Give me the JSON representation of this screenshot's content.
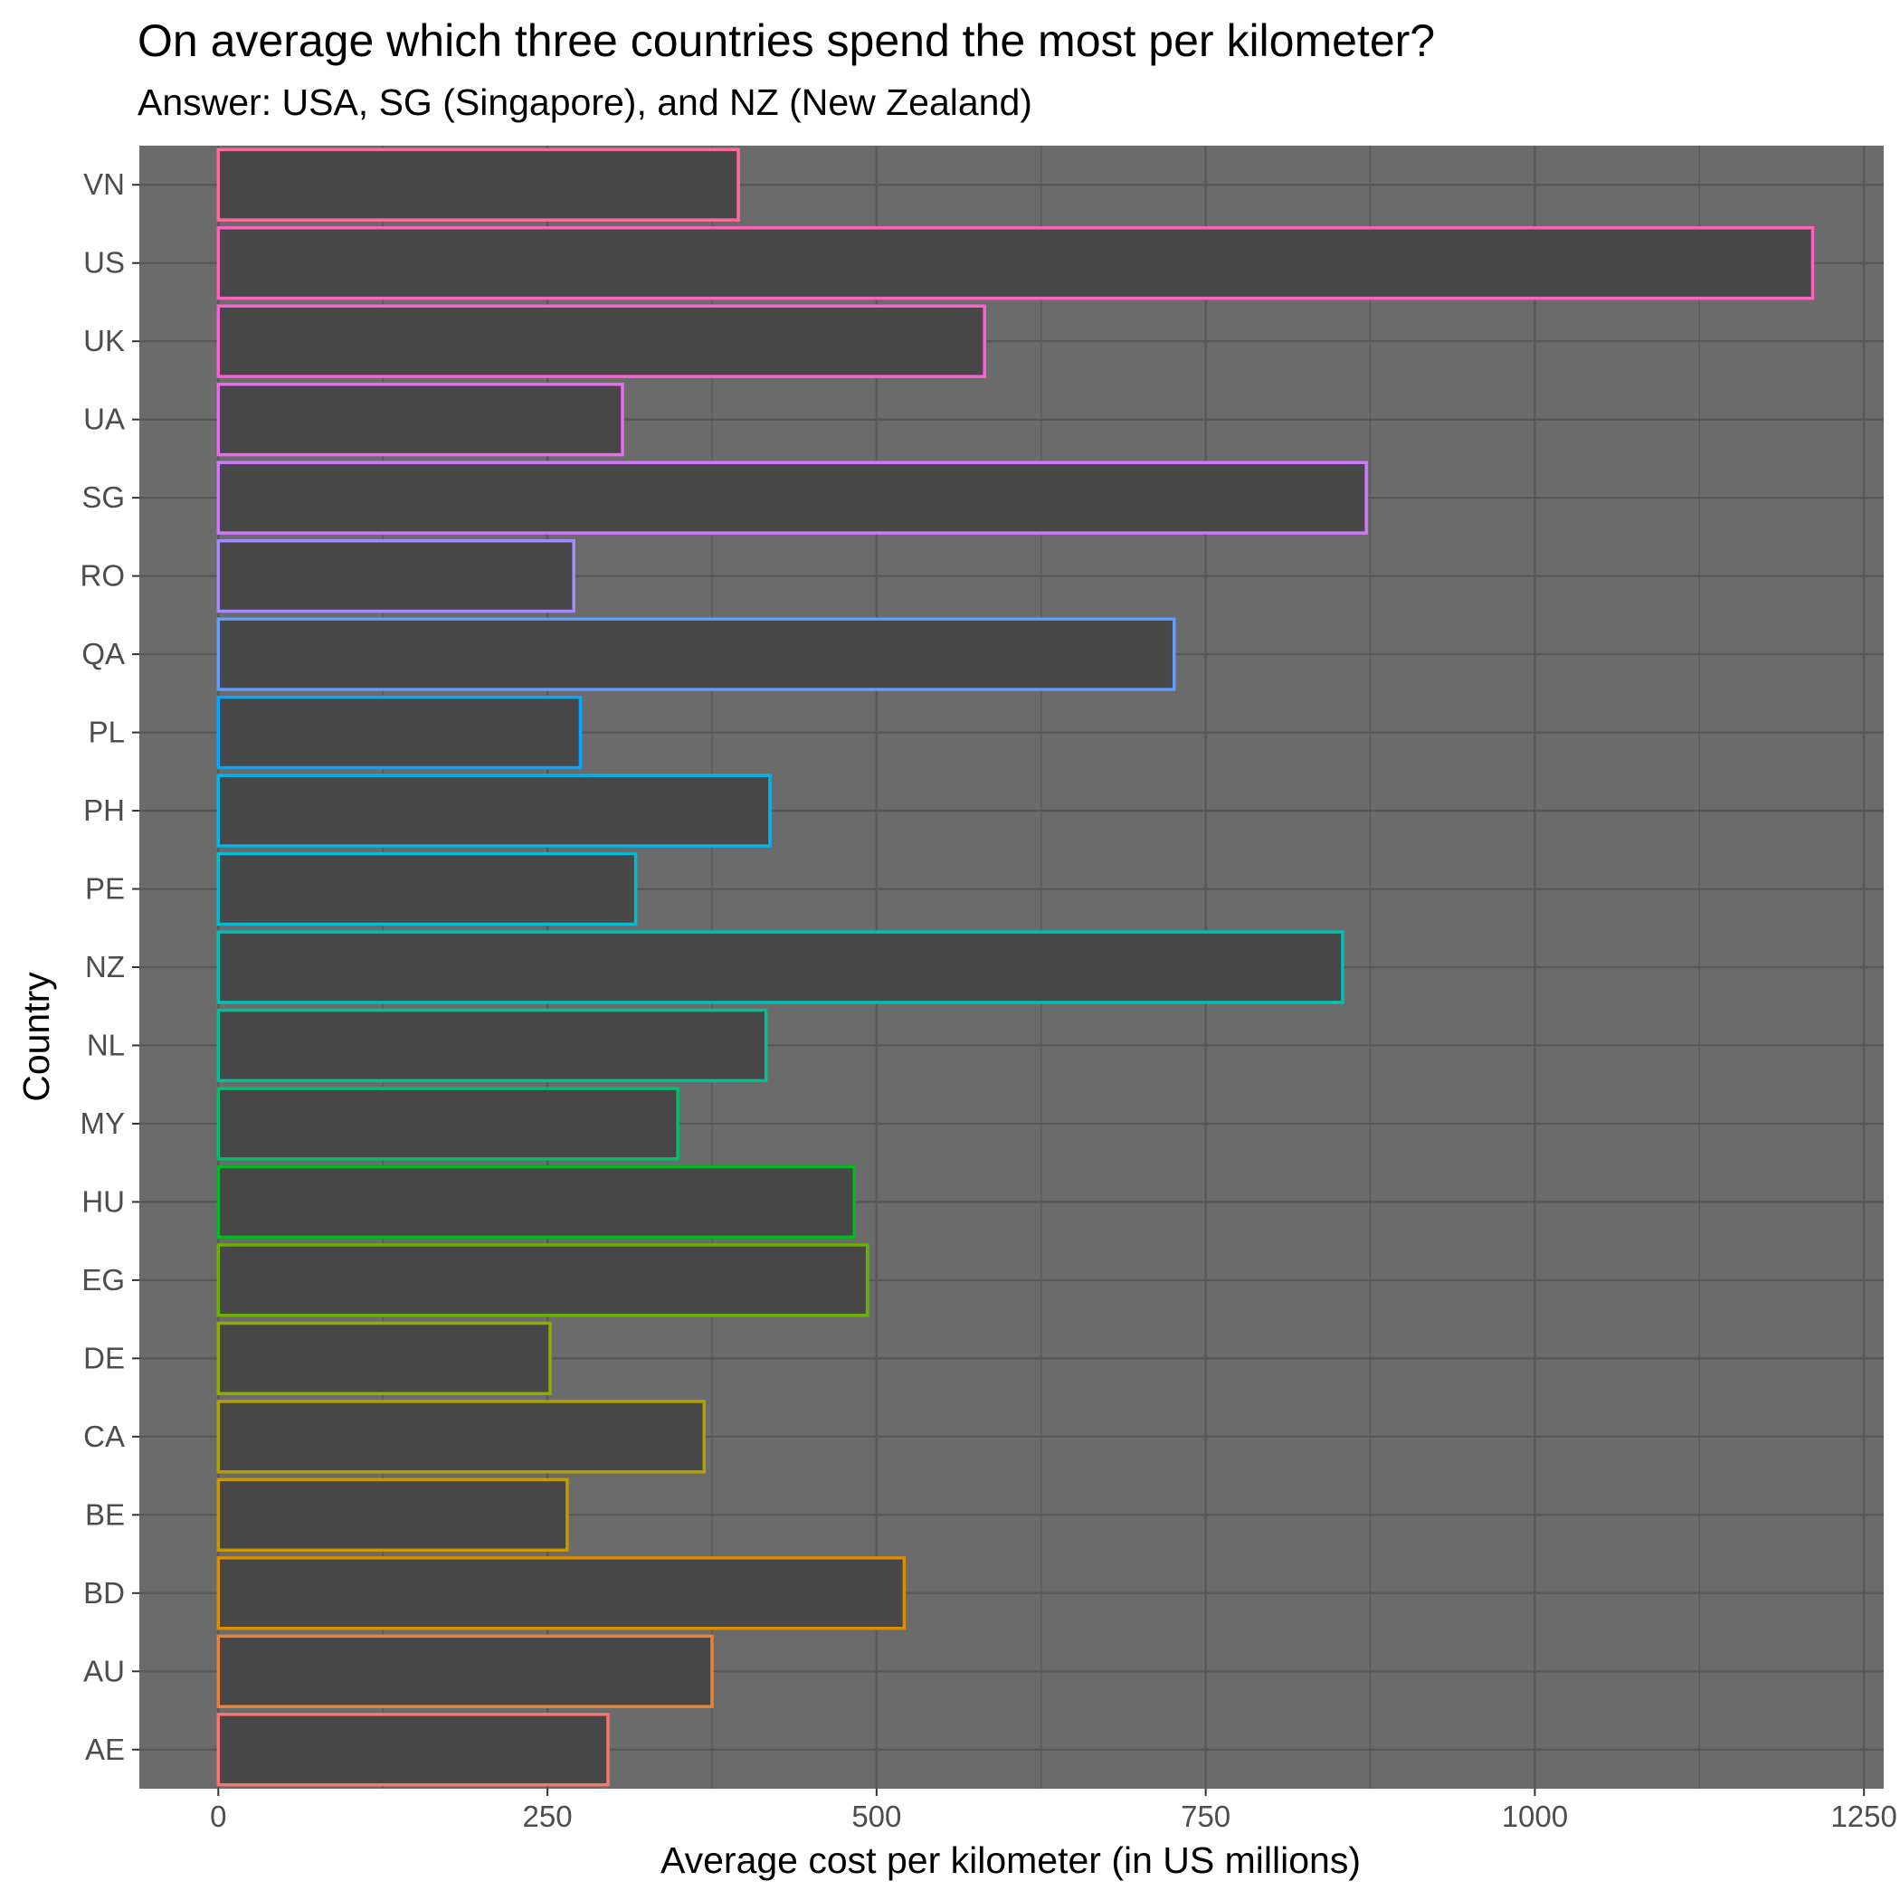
{
  "chart_data": {
    "type": "bar",
    "orientation": "horizontal",
    "title": "On average which three countries spend the most per kilometer?",
    "subtitle": "Answer: USA, SG (Singapore), and NZ (New Zealand)",
    "xlabel": "Average cost per kilometer (in US millions)",
    "ylabel": "Country",
    "xlim": [
      -60,
      1265
    ],
    "xticks": [
      0,
      250,
      500,
      750,
      1000,
      1250
    ],
    "grid": true,
    "legend": "none",
    "categories": [
      "AE",
      "AU",
      "BD",
      "BE",
      "CA",
      "DE",
      "EG",
      "HU",
      "MY",
      "NL",
      "NZ",
      "PE",
      "PH",
      "PL",
      "QA",
      "RO",
      "SG",
      "UA",
      "UK",
      "US",
      "VN"
    ],
    "values": [
      296,
      375,
      521,
      265,
      369,
      252,
      493,
      483,
      349,
      416,
      854,
      317,
      419,
      275,
      726,
      270,
      872,
      307,
      582,
      1211,
      395
    ],
    "colors": [
      "#F8766D",
      "#EC8239",
      "#DB8E00",
      "#C79800",
      "#AFA100",
      "#93AA00",
      "#6BB100",
      "#00B81F",
      "#00BE6C",
      "#00C094",
      "#00C0B5",
      "#00BCD2",
      "#00B5EB",
      "#00A9FF",
      "#619CFF",
      "#A58AFF",
      "#CF78FF",
      "#EA6BEF",
      "#FB61D7",
      "#FF62BC",
      "#FF6A9A"
    ],
    "bar_fill": "#474747",
    "panel_background": "#6b6b6b",
    "grid_color": "#585858"
  }
}
